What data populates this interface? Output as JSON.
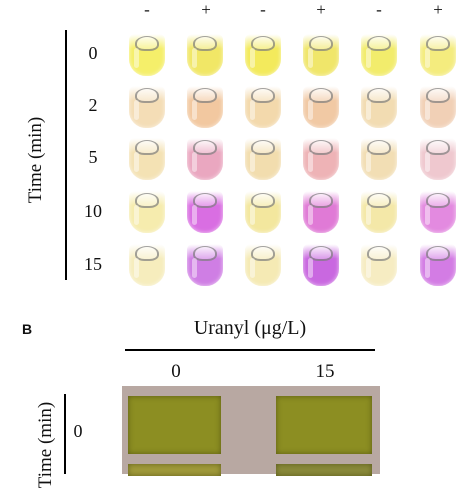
{
  "panel_a": {
    "condition_labels": [
      "-",
      "+",
      "-",
      "+",
      "-",
      "+"
    ],
    "axis_label": "Time (min)",
    "time_labels": [
      "0",
      "2",
      "5",
      "10",
      "15"
    ],
    "tube_colors": [
      [
        "#f5ef6a",
        "#f1e766",
        "#f3ea5c",
        "#f0e66a",
        "#f2ec6c",
        "#f4ec7e"
      ],
      [
        "#f4ddb6",
        "#f2c8a0",
        "#f3d9ac",
        "#f1c9a4",
        "#f2dcb2",
        "#f1d0b6"
      ],
      [
        "#f4e2b4",
        "#eaa7c0",
        "#f2ddae",
        "#eeb3b6",
        "#f2deb4",
        "#efc8cf"
      ],
      [
        "#f6ecae",
        "#d96ee2",
        "#f3e79e",
        "#e07ad6",
        "#f4e8a8",
        "#e38ae0"
      ],
      [
        "#f6edbd",
        "#cf7ee4",
        "#f5eab4",
        "#c968e0",
        "#f6ecc2",
        "#d37ce4"
      ]
    ]
  },
  "panel_b": {
    "label": "B",
    "title": "Uranyl (μg/L)",
    "concentrations": [
      "0",
      "15"
    ],
    "axis_label": "Time (min)",
    "time_labels": [
      "0"
    ]
  }
}
